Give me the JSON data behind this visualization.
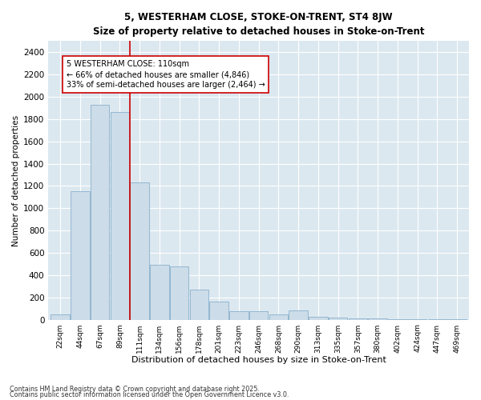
{
  "title1": "5, WESTERHAM CLOSE, STOKE-ON-TRENT, ST4 8JW",
  "title2": "Size of property relative to detached houses in Stoke-on-Trent",
  "xlabel": "Distribution of detached houses by size in Stoke-on-Trent",
  "ylabel": "Number of detached properties",
  "categories": [
    "22sqm",
    "44sqm",
    "67sqm",
    "89sqm",
    "111sqm",
    "134sqm",
    "156sqm",
    "178sqm",
    "201sqm",
    "223sqm",
    "246sqm",
    "268sqm",
    "290sqm",
    "313sqm",
    "335sqm",
    "357sqm",
    "380sqm",
    "402sqm",
    "424sqm",
    "447sqm",
    "469sqm"
  ],
  "values": [
    50,
    1150,
    1930,
    1860,
    1230,
    490,
    480,
    270,
    160,
    75,
    75,
    50,
    80,
    25,
    20,
    10,
    8,
    5,
    3,
    2,
    4
  ],
  "bar_color": "#ccdce8",
  "bar_edge_color": "#8ab0cc",
  "vline_color": "#cc0000",
  "annotation_text": "5 WESTERHAM CLOSE: 110sqm\n← 66% of detached houses are smaller (4,846)\n33% of semi-detached houses are larger (2,464) →",
  "annotation_box_color": "#ffffff",
  "annotation_box_edge": "#cc0000",
  "ylim": [
    0,
    2500
  ],
  "yticks": [
    0,
    200,
    400,
    600,
    800,
    1000,
    1200,
    1400,
    1600,
    1800,
    2000,
    2200,
    2400
  ],
  "background_color": "#dce8f0",
  "grid_color": "#ffffff",
  "footnote1": "Contains HM Land Registry data © Crown copyright and database right 2025.",
  "footnote2": "Contains public sector information licensed under the Open Government Licence v3.0."
}
